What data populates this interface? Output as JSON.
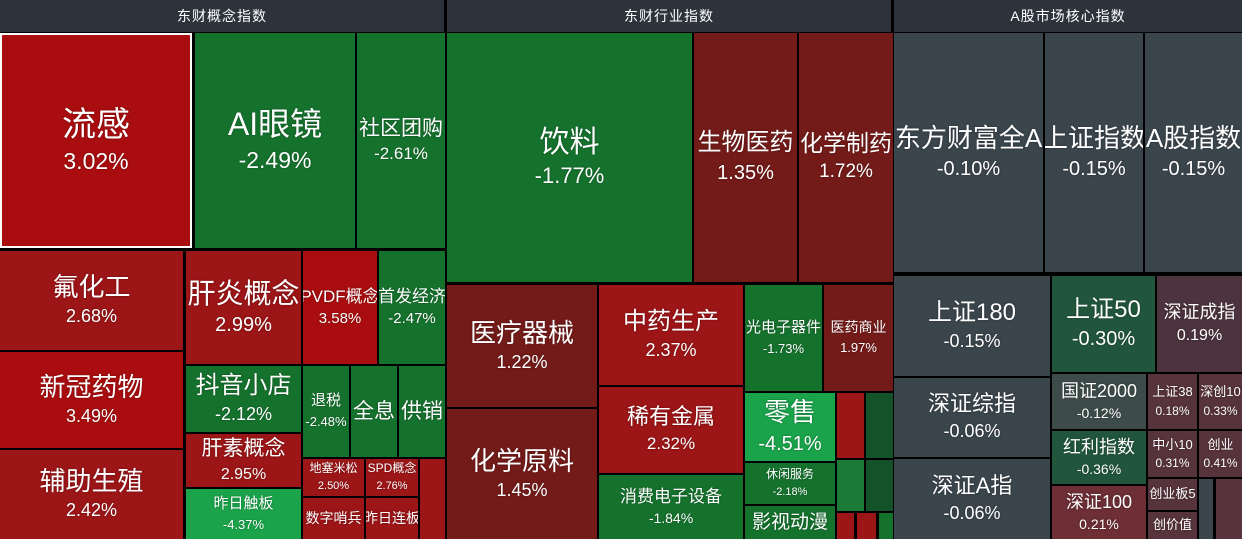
{
  "chart_data": {
    "type": "treemap",
    "background": "#000000",
    "header_bg": "#2d333b",
    "text_color": "#ffffff",
    "palette": {
      "red3": "#a90d0f",
      "red2": "#9c1517",
      "red1": "#731b19",
      "grn": "#15722d",
      "grn2": "#1b7a35",
      "grnB": "#1aa34a",
      "grnD": "#14532a",
      "grnI": "#21563c",
      "slate": "#3a454c",
      "slateG": "#3d4b49",
      "plum1": "#4c333e",
      "plum2": "#57333c",
      "plumR": "#6d2e35"
    },
    "panels": [
      {
        "header": "东财概念指数",
        "header_rect": [
          0,
          0,
          444,
          32
        ],
        "tiles": [
          {
            "n": "流感",
            "v": "3.02%",
            "c": "red3",
            "r": [
              0,
              33,
              192,
              215
            ],
            "fs": 34,
            "pfs": 23,
            "hl": true
          },
          {
            "n": "AI眼镜",
            "v": "-2.49%",
            "c": "grn",
            "r": [
              195,
              33,
              160,
              215
            ],
            "fs": 32,
            "pfs": 23
          },
          {
            "n": "社区团购",
            "v": "-2.61%",
            "c": "grn",
            "r": [
              357,
              33,
              88,
              215
            ],
            "fs": 21,
            "pfs": 17
          },
          {
            "n": "氟化工",
            "v": "2.68%",
            "c": "red2",
            "r": [
              0,
              251,
              183,
              99
            ],
            "fs": 26,
            "pfs": 18
          },
          {
            "n": "新冠药物",
            "v": "3.49%",
            "c": "red3",
            "r": [
              0,
              352,
              183,
              96
            ],
            "fs": 26,
            "pfs": 18
          },
          {
            "n": "辅助生殖",
            "v": "2.42%",
            "c": "red2",
            "r": [
              0,
              450,
              183,
              89
            ],
            "fs": 26,
            "pfs": 18
          },
          {
            "n": "肝炎概念",
            "v": "2.99%",
            "c": "red2",
            "r": [
              186,
              251,
              115,
              113
            ],
            "fs": 28,
            "pfs": 20
          },
          {
            "n": "PVDF概念",
            "v": "3.58%",
            "c": "red3",
            "r": [
              303,
              251,
              74,
              113
            ],
            "fs": 17,
            "pfs": 15
          },
          {
            "n": "首发经济",
            "v": "-2.47%",
            "c": "grn",
            "r": [
              379,
              251,
              66,
              113
            ],
            "fs": 17,
            "pfs": 15
          },
          {
            "n": "抖音小店",
            "v": "-2.12%",
            "c": "grn",
            "r": [
              186,
              366,
              115,
              66
            ],
            "fs": 24,
            "pfs": 18
          },
          {
            "n": "退税",
            "v": "-2.48%",
            "c": "grn",
            "r": [
              303,
              366,
              46,
              91
            ],
            "fs": 15,
            "pfs": 13
          },
          {
            "n": "全息",
            "v": "",
            "c": "grn",
            "r": [
              351,
              366,
              46,
              91
            ],
            "fs": 21
          },
          {
            "n": "供销",
            "v": "",
            "c": "grn",
            "r": [
              399,
              366,
              46,
              91
            ],
            "fs": 21
          },
          {
            "n": "肝素概念",
            "v": "2.95%",
            "c": "red2",
            "r": [
              186,
              434,
              115,
              53
            ],
            "fs": 21,
            "pfs": 16
          },
          {
            "n": "昨日触板",
            "v": "-4.37%",
            "c": "grnB",
            "r": [
              186,
              489,
              115,
              50
            ],
            "fs": 15,
            "pfs": 13
          },
          {
            "n": "地塞米松",
            "v": "2.50%",
            "c": "red2",
            "r": [
              303,
              459,
              61,
              37
            ],
            "fs": 12,
            "pfs": 11
          },
          {
            "n": "SPD概念",
            "v": "2.76%",
            "c": "red2",
            "r": [
              366,
              459,
              52,
              37
            ],
            "fs": 12,
            "pfs": 11
          },
          {
            "n": "",
            "v": "",
            "c": "red2",
            "r": [
              420,
              459,
              25,
              80
            ]
          },
          {
            "n": "数字哨兵",
            "v": "",
            "c": "red2",
            "r": [
              303,
              498,
              61,
              41
            ],
            "fs": 14
          },
          {
            "n": "昨日连板",
            "v": "",
            "c": "red2",
            "r": [
              366,
              498,
              52,
              41
            ],
            "fs": 14
          }
        ]
      },
      {
        "header": "东财行业指数",
        "header_rect": [
          447,
          0,
          444,
          32
        ],
        "tiles": [
          {
            "n": "饮料",
            "v": "-1.77%",
            "c": "grn",
            "r": [
              447,
              33,
              245,
              249
            ],
            "fs": 30,
            "pfs": 22
          },
          {
            "n": "生物医药",
            "v": "1.35%",
            "c": "red1",
            "r": [
              694,
              33,
              103,
              249
            ],
            "fs": 24,
            "pfs": 20
          },
          {
            "n": "化学制药",
            "v": "1.72%",
            "c": "red1",
            "r": [
              799,
              33,
              94,
              249
            ],
            "fs": 23,
            "pfs": 19
          },
          {
            "n": "医疗器械",
            "v": "1.22%",
            "c": "red1",
            "r": [
              447,
              285,
              150,
              122
            ],
            "fs": 26,
            "pfs": 18
          },
          {
            "n": "化学原料",
            "v": "1.45%",
            "c": "red1",
            "r": [
              447,
              409,
              150,
              130
            ],
            "fs": 26,
            "pfs": 18
          },
          {
            "n": "中药生产",
            "v": "2.37%",
            "c": "red2",
            "r": [
              599,
              285,
              144,
              100
            ],
            "fs": 24,
            "pfs": 18
          },
          {
            "n": "稀有金属",
            "v": "2.32%",
            "c": "red2",
            "r": [
              599,
              387,
              144,
              86
            ],
            "fs": 22,
            "pfs": 17
          },
          {
            "n": "消费电子设备",
            "v": "-1.84%",
            "c": "grn",
            "r": [
              599,
              475,
              144,
              64
            ],
            "fs": 17,
            "pfs": 14
          },
          {
            "n": "光电子器件",
            "v": "-1.73%",
            "c": "grn",
            "r": [
              745,
              285,
              77,
              106
            ],
            "fs": 15,
            "pfs": 13
          },
          {
            "n": "医药商业",
            "v": "1.97%",
            "c": "red1",
            "r": [
              824,
              285,
              69,
              106
            ],
            "fs": 14,
            "pfs": 13
          },
          {
            "n": "零售",
            "v": "-4.51%",
            "c": "grnB",
            "r": [
              745,
              393,
              90,
              68
            ],
            "fs": 26,
            "pfs": 20
          },
          {
            "n": "休闲服务",
            "v": "-2.18%",
            "c": "grn",
            "r": [
              745,
              463,
              90,
              41
            ],
            "fs": 12,
            "pfs": 11
          },
          {
            "n": "影视动漫",
            "v": "",
            "c": "grn",
            "r": [
              745,
              506,
              90,
              33
            ],
            "fs": 19
          },
          {
            "n": "",
            "v": "",
            "c": "red2",
            "r": [
              837,
              393,
              27,
              65
            ]
          },
          {
            "n": "",
            "v": "",
            "c": "grnD",
            "r": [
              866,
              393,
              27,
              65
            ]
          },
          {
            "n": "",
            "v": "",
            "c": "grn2",
            "r": [
              837,
              460,
              27,
              51
            ]
          },
          {
            "n": "",
            "v": "",
            "c": "grnD",
            "r": [
              866,
              460,
              27,
              51
            ]
          },
          {
            "n": "",
            "v": "",
            "c": "red2",
            "r": [
              837,
              513,
              17,
              26
            ]
          },
          {
            "n": "",
            "v": "",
            "c": "red2",
            "r": [
              857,
              513,
              19,
              26
            ]
          },
          {
            "n": "",
            "v": "",
            "c": "grn",
            "r": [
              879,
              513,
              14,
              26
            ]
          }
        ]
      },
      {
        "header": "A股市场核心指数",
        "header_rect": [
          894,
          0,
          348,
          32
        ],
        "tiles": [
          {
            "n": "东方财富全A",
            "v": "-0.10%",
            "c": "slate",
            "r": [
              894,
              33,
              149,
              239
            ],
            "fs": 26,
            "pfs": 20
          },
          {
            "n": "上证指数",
            "v": "-0.15%",
            "c": "slate",
            "r": [
              1045,
              33,
              98,
              239
            ],
            "fs": 26,
            "pfs": 20
          },
          {
            "n": "A股指数",
            "v": "-0.15%",
            "c": "slate",
            "r": [
              1145,
              33,
              97,
              239
            ],
            "fs": 26,
            "pfs": 20
          },
          {
            "n": "上证180",
            "v": "-0.15%",
            "c": "slate",
            "r": [
              894,
              276,
              156,
              100
            ],
            "fs": 24,
            "pfs": 18
          },
          {
            "n": "深证综指",
            "v": "-0.06%",
            "c": "slate",
            "r": [
              894,
              378,
              156,
              79
            ],
            "fs": 22,
            "pfs": 18
          },
          {
            "n": "深证A指",
            "v": "-0.06%",
            "c": "slate",
            "r": [
              894,
              459,
              156,
              80
            ],
            "fs": 22,
            "pfs": 18
          },
          {
            "n": "上证50",
            "v": "-0.30%",
            "c": "grnI",
            "r": [
              1052,
              276,
              103,
              96
            ],
            "fs": 24,
            "pfs": 20
          },
          {
            "n": "深证成指",
            "v": "0.19%",
            "c": "plum1",
            "r": [
              1157,
              276,
              85,
              96
            ],
            "fs": 18,
            "pfs": 16
          },
          {
            "n": "国证2000",
            "v": "-0.12%",
            "c": "slateG",
            "r": [
              1052,
              374,
              94,
              55
            ],
            "fs": 18,
            "pfs": 14
          },
          {
            "n": "上证38",
            "v": "0.18%",
            "c": "plum2",
            "r": [
              1148,
              374,
              49,
              55
            ],
            "fs": 13,
            "pfs": 12
          },
          {
            "n": "深创10",
            "v": "0.33%",
            "c": "plum2",
            "r": [
              1199,
              374,
              43,
              55
            ],
            "fs": 13,
            "pfs": 12
          },
          {
            "n": "红利指数",
            "v": "-0.36%",
            "c": "grnI",
            "r": [
              1052,
              431,
              94,
              53
            ],
            "fs": 18,
            "pfs": 14
          },
          {
            "n": "中小10",
            "v": "0.31%",
            "c": "plum2",
            "r": [
              1148,
              431,
              49,
              46
            ],
            "fs": 13,
            "pfs": 12
          },
          {
            "n": "创业",
            "v": "0.41%",
            "c": "plum2",
            "r": [
              1199,
              431,
              43,
              46
            ],
            "fs": 13,
            "pfs": 12
          },
          {
            "n": "深证100",
            "v": "0.21%",
            "c": "plumR",
            "r": [
              1052,
              486,
              94,
              53
            ],
            "fs": 18,
            "pfs": 14
          },
          {
            "n": "创业板5",
            "v": "",
            "c": "plum2",
            "r": [
              1148,
              479,
              49,
              31
            ],
            "fs": 13
          },
          {
            "n": "创价值",
            "v": "",
            "c": "plum2",
            "r": [
              1148,
              512,
              49,
              27
            ],
            "fs": 13
          },
          {
            "n": "",
            "v": "",
            "c": "slate",
            "r": [
              1199,
              479,
              14,
              60
            ]
          },
          {
            "n": "",
            "v": "",
            "c": "plum2",
            "r": [
              1216,
              479,
              26,
              60
            ]
          }
        ]
      }
    ]
  }
}
